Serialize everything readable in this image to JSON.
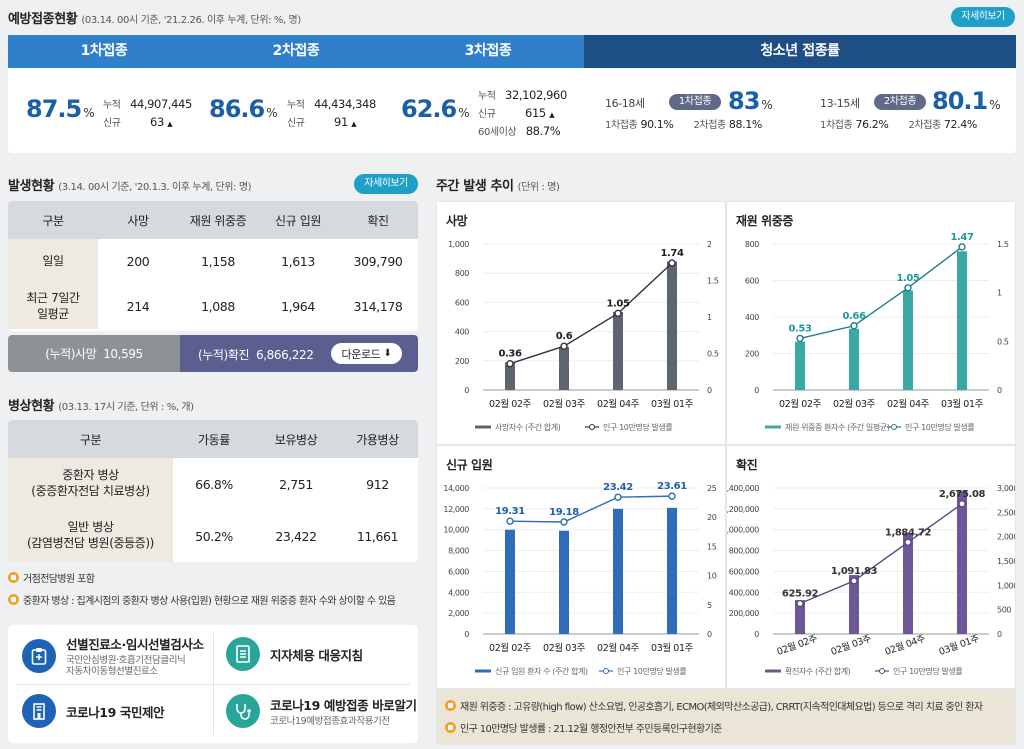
{
  "vaccination": {
    "title": "예방접종현황",
    "subtitle": "(03.14. 00시 기준, '21.2.26. 이후 누계, 단위: %, 명)",
    "detail_label": "자세히보기",
    "tabs": [
      "1차접종",
      "2차접종",
      "3차접종",
      "청소년 접종률"
    ],
    "dose1": {
      "rate": "87.5",
      "unit": "%",
      "cum_label": "누적",
      "cum": "44,907,445",
      "new_label": "신규",
      "new": "63"
    },
    "dose2": {
      "rate": "86.6",
      "unit": "%",
      "cum_label": "누적",
      "cum": "44,434,348",
      "new_label": "신규",
      "new": "91"
    },
    "dose3": {
      "rate": "62.6",
      "unit": "%",
      "cum_label": "누적",
      "cum": "32,102,960",
      "new_label": "신규",
      "new": "615",
      "over60_label": "60세이상",
      "over60": "88.7%"
    },
    "teen1": {
      "age": "16-18세",
      "badge": "1차접종",
      "rate": "83",
      "unit": "%",
      "d1_label": "1차접종",
      "d1": "90.1%",
      "d2_label": "2차접종",
      "d2": "88.1%"
    },
    "teen2": {
      "age": "13-15세",
      "badge": "2차접종",
      "rate": "80.1",
      "unit": "%",
      "d1_label": "1차접종",
      "d1": "76.2%",
      "d2_label": "2차접종",
      "d2": "72.4%"
    }
  },
  "outbreak": {
    "title": "발생현황",
    "subtitle": "(3.14. 00시 기준, '20.1.3. 이후 누계, 단위: 명)",
    "detail_label": "자세히보기",
    "headers": [
      "구분",
      "사망",
      "재원 위중증",
      "신규 입원",
      "확진"
    ],
    "rows": [
      {
        "label": "일일",
        "values": [
          "200",
          "1,158",
          "1,613",
          "309,790"
        ]
      },
      {
        "label": "최근 7일간\n일평균",
        "values": [
          "214",
          "1,088",
          "1,964",
          "314,178"
        ]
      }
    ],
    "cum_death_label": "(누적)사망",
    "cum_death": "10,595",
    "cum_conf_label": "(누적)확진",
    "cum_conf": "6,866,222",
    "download_label": "다운로드"
  },
  "beds": {
    "title": "병상현황",
    "subtitle": "(03.13. 17시 기준, 단위 : %, 개)",
    "headers": [
      "구분",
      "가동률",
      "보유병상",
      "가용병상"
    ],
    "rows": [
      {
        "label": "중환자 병상\n(중증환자전담 치료병상)",
        "values": [
          "66.8%",
          "2,751",
          "912"
        ]
      },
      {
        "label": "일반 병상\n(감염병전담 병원(중등증))",
        "values": [
          "50.2%",
          "23,422",
          "11,661"
        ]
      }
    ],
    "notes": [
      "거점전담병원 포함",
      "중환자 병상 : 집계시점의 중환자 병상 사용(입원) 현황으로 재원 위중증 환자 수와 상이할 수 있음"
    ]
  },
  "links": [
    {
      "title": "선별진료소·임시선별검사소",
      "sub": "국민안심병원·호흡기전담클리닉\n자동차이동형선별진료소",
      "icon": "clipboard-icon"
    },
    {
      "title": "지자체용 대응지침",
      "sub": "",
      "icon": "document-icon"
    },
    {
      "title": "코로나19 국민제안",
      "sub": "",
      "icon": "building-icon"
    },
    {
      "title": "코로나19 예방접종 바로알기",
      "sub": "코로나19예방접종효과작용기전",
      "icon": "stethoscope-icon"
    }
  ],
  "weekly": {
    "title": "주간 발생 추이",
    "subtitle": "(단위 : 명)",
    "notes": [
      "재원 위중증 : 고유량(high flow) 산소요법, 인공호흡기, ECMO(체외막산소공급), CRRT(지속적인대체요법) 등으로 격리 치료 중인 환자",
      "인구 10만명당 발생률 : 21.12월 행정안전부 주민등록인구현황기준"
    ]
  },
  "chart_data": [
    {
      "type": "bar",
      "title": "사망",
      "categories": [
        "02월 02주",
        "02월 03주",
        "02월 04주",
        "03월 01주"
      ],
      "series": [
        {
          "name": "사망자수 (주간 합계)",
          "type": "bar",
          "values": [
            190,
            295,
            535,
            880
          ],
          "color": "#5d6670"
        },
        {
          "name": "인구 10만명당 발생률",
          "type": "line",
          "axis": "right",
          "values": [
            0.36,
            0.6,
            1.05,
            1.74
          ],
          "labels": [
            "0.36",
            "0.6",
            "1.05",
            "1.74"
          ]
        }
      ],
      "ylim": [
        0,
        1000
      ],
      "yticks": [
        "0",
        "200",
        "400",
        "600",
        "800",
        "1,000"
      ],
      "y2lim": [
        0,
        2
      ],
      "y2ticks": [
        "0",
        "0.5",
        "1",
        "1.5",
        "2"
      ]
    },
    {
      "type": "bar",
      "title": "재원 위중증",
      "categories": [
        "02월 02주",
        "02월 03주",
        "02월 04주",
        "03월 01주"
      ],
      "series": [
        {
          "name": "재원 위중증 환자수 (주간 일평균)",
          "type": "bar",
          "values": [
            265,
            335,
            545,
            760
          ],
          "color": "#3aa8a4"
        },
        {
          "name": "인구 10만명당 발생률",
          "type": "line",
          "axis": "right",
          "values": [
            0.53,
            0.66,
            1.05,
            1.47
          ],
          "labels": [
            "0.53",
            "0.66",
            "1.05",
            "1.47"
          ]
        }
      ],
      "ylim": [
        0,
        800
      ],
      "yticks": [
        "0",
        "200",
        "400",
        "600",
        "800"
      ],
      "y2lim": [
        0,
        1.5
      ],
      "y2ticks": [
        "0",
        "0.5",
        "1",
        "1.5"
      ]
    },
    {
      "type": "bar",
      "title": "신규 입원",
      "categories": [
        "02월 02주",
        "02월 03주",
        "02월 04주",
        "03월 01주"
      ],
      "series": [
        {
          "name": "신규 입원 환자 수 (주간 합계)",
          "type": "bar",
          "values": [
            10000,
            9900,
            12000,
            12100
          ],
          "color": "#2f6db8"
        },
        {
          "name": "인구 10만명당 발생률",
          "type": "line",
          "axis": "right",
          "values": [
            19.31,
            19.18,
            23.42,
            23.61
          ],
          "labels": [
            "19.31",
            "19.18",
            "23.42",
            "23.61"
          ]
        }
      ],
      "ylim": [
        0,
        14000
      ],
      "yticks": [
        "0",
        "2,000",
        "4,000",
        "6,000",
        "8,000",
        "10,000",
        "12,000",
        "14,000"
      ],
      "y2lim": [
        0,
        25
      ],
      "y2ticks": [
        "0",
        "5",
        "10",
        "15",
        "20",
        "25"
      ]
    },
    {
      "type": "bar",
      "title": "확진",
      "categories": [
        "02월 02주",
        "02월 03주",
        "02월 04주",
        "03월 01주"
      ],
      "series": [
        {
          "name": "확진자수 (주간 합계)",
          "type": "bar",
          "values": [
            325000,
            565000,
            970000,
            1370000
          ],
          "color": "#6e5796"
        },
        {
          "name": "인구 10만명당 발생률",
          "type": "line",
          "axis": "right",
          "values": [
            625.92,
            1091.83,
            1884.72,
            2675.08
          ],
          "labels": [
            "625.92",
            "1,091.83",
            "1,884.72",
            "2,675.08"
          ]
        }
      ],
      "ylim": [
        0,
        1400000
      ],
      "yticks": [
        "0",
        "200,000",
        "400,000",
        "600,000",
        "800,000",
        "1,000,000",
        "1,200,000",
        "1,400,000"
      ],
      "y2lim": [
        0,
        3000
      ],
      "y2ticks": [
        "0",
        "500",
        "1,000",
        "1,500",
        "2,000",
        "2,500",
        "3,000"
      ]
    }
  ]
}
